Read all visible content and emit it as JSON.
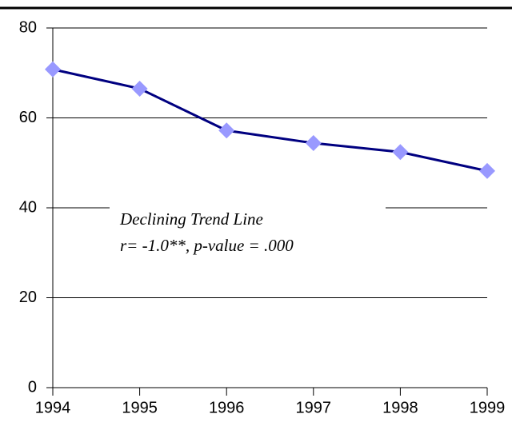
{
  "chart_data": {
    "type": "line",
    "annotations": [
      "Declining Trend Line",
      "r=  -1.0**, p-value = .000"
    ],
    "x": [
      1994,
      1995,
      1996,
      1997,
      1998,
      1999
    ],
    "series": [
      {
        "color": "#000080",
        "marker_color": "#9999ff",
        "values": [
          70.8,
          66.5,
          57.2,
          54.4,
          52.4,
          48.2
        ]
      }
    ],
    "xlim": [
      1994,
      1999
    ],
    "xticks": [
      1994,
      1995,
      1996,
      1997,
      1998,
      1999
    ],
    "ylim": [
      0,
      80
    ],
    "yticks": [
      0,
      20,
      40,
      60,
      80
    ],
    "grid": true
  }
}
